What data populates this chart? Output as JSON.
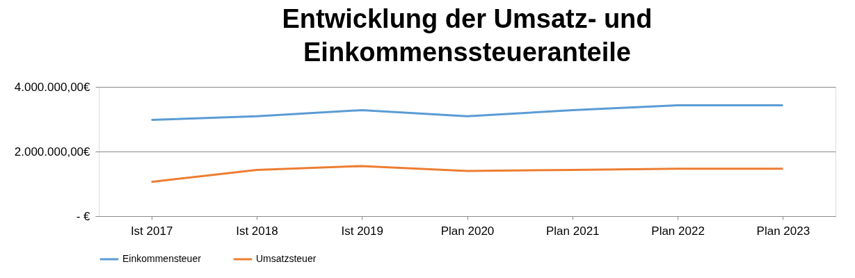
{
  "chart_data": {
    "type": "line",
    "title": "Entwicklung der Umsatz- und Einkommenssteueranteile",
    "categories": [
      "Ist 2017",
      "Ist 2018",
      "Ist 2019",
      "Plan 2020",
      "Plan 2021",
      "Plan 2022",
      "Plan 2023"
    ],
    "series": [
      {
        "name": "Einkommensteuer",
        "color": "#5b9bd5",
        "values": [
          2980000,
          3090000,
          3280000,
          3090000,
          3280000,
          3430000,
          3430000
        ]
      },
      {
        "name": "Umsatzsteuer",
        "color": "#ed7d31",
        "values": [
          1060000,
          1430000,
          1550000,
          1400000,
          1430000,
          1470000,
          1470000
        ]
      }
    ],
    "ylim": [
      0,
      4000000
    ],
    "yticks": [
      {
        "value": 0,
        "label": "-   €"
      },
      {
        "value": 2000000,
        "label": "2.000.000,00€"
      },
      {
        "value": 4000000,
        "label": "4.000.000,00€"
      }
    ],
    "grid": "y",
    "legend": "bottom",
    "marker": "none",
    "line_style": "solid"
  }
}
